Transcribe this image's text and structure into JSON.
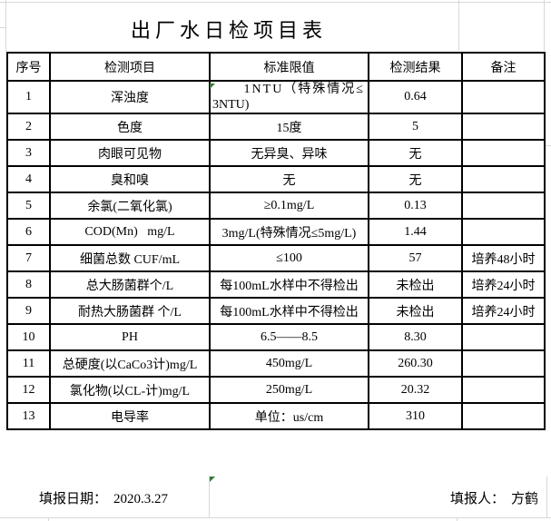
{
  "title": "出厂水日检项目表",
  "table": {
    "headers": [
      "序号",
      "检测项目",
      "标准限值",
      "检测结果",
      "备注"
    ],
    "rows": [
      {
        "no": "1",
        "item": "浑浊度",
        "standard_lines": [
          "1NTU（特殊情况≤",
          "3NTU)"
        ],
        "result": "0.64",
        "remark": ""
      },
      {
        "no": "2",
        "item": "色度",
        "standard": "15度",
        "result": "5",
        "remark": ""
      },
      {
        "no": "3",
        "item": "肉眼可见物",
        "standard": "无异臭、异味",
        "result": "无",
        "remark": ""
      },
      {
        "no": "4",
        "item": "臭和嗅",
        "standard": "无",
        "result": "无",
        "remark": ""
      },
      {
        "no": "5",
        "item": "余氯(二氧化氯)",
        "standard": "≥0.1mg/L",
        "result": "0.13",
        "remark": ""
      },
      {
        "no": "6",
        "item": "COD(Mn)   mg/L",
        "standard": "3mg/L(特殊情况≤5mg/L)",
        "result": "1.44",
        "remark": ""
      },
      {
        "no": "7",
        "item": "细菌总数 CUF/mL",
        "standard": "≤100",
        "result": "57",
        "remark": "培养48小时"
      },
      {
        "no": "8",
        "item": "总大肠菌群个/L",
        "standard": "每100mL水样中不得检出",
        "result": "未检出",
        "remark": "培养24小时"
      },
      {
        "no": "9",
        "item": "耐热大肠菌群 个/L",
        "standard": "每100mL水样中不得检出",
        "result": "未检出",
        "remark": "培养24小时"
      },
      {
        "no": "10",
        "item": "PH",
        "standard": "6.5——8.5",
        "result": "8.30",
        "remark": ""
      },
      {
        "no": "11",
        "item": "总硬度(以CaCo3计)mg/L",
        "standard": "450mg/L",
        "result": "260.30",
        "remark": ""
      },
      {
        "no": "12",
        "item": "氯化物(以CL-计)mg/L",
        "standard": "250mg/L",
        "result": "20.32",
        "remark": ""
      },
      {
        "no": "13",
        "item": "电导率",
        "standard": "单位：us/cm",
        "result": "310",
        "remark": ""
      }
    ]
  },
  "footer": {
    "date_label": "填报日期：",
    "date_value": "2020.3.27",
    "reporter_label": "填报人：",
    "reporter_value": "方鹤"
  },
  "colors": {
    "table_border": "#000000",
    "gridline_grey": "#d8d8d8",
    "error_indicator_green": "#2e7d31"
  }
}
